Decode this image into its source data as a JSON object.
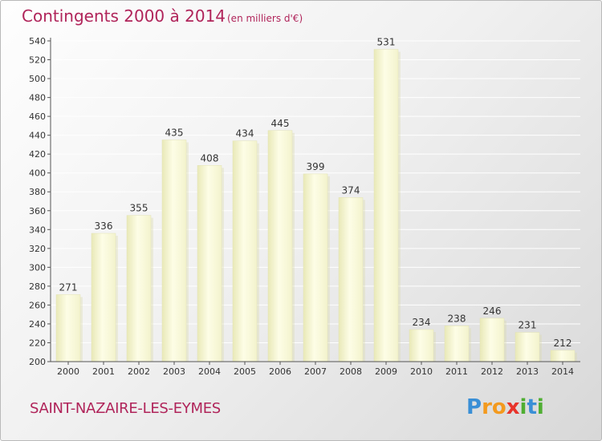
{
  "chart_data": {
    "type": "bar",
    "title": "Contingents 2000 à 2014",
    "subtitle": "(en milliers d'€)",
    "categories": [
      "2000",
      "2001",
      "2002",
      "2003",
      "2004",
      "2005",
      "2006",
      "2007",
      "2008",
      "2009",
      "2010",
      "2011",
      "2012",
      "2013",
      "2014"
    ],
    "values": [
      271,
      336,
      355,
      435,
      408,
      434,
      445,
      399,
      374,
      531,
      234,
      238,
      246,
      231,
      212
    ],
    "xlabel": "",
    "ylabel": "",
    "ylim": [
      200,
      540
    ],
    "yticks": [
      200,
      220,
      240,
      260,
      280,
      300,
      320,
      340,
      360,
      380,
      400,
      420,
      440,
      460,
      480,
      500,
      520,
      540
    ],
    "grid": true,
    "legend": "none",
    "bar_color": "#f2f2c8",
    "bar_shadow_color": "#d9d9a8",
    "place_label": "SAINT-NAZAIRE-LES-EYMES"
  },
  "brand": {
    "letters": [
      "P",
      "r",
      "o",
      "x",
      "i",
      "t",
      "i"
    ],
    "colors": [
      "#3a8fd6",
      "#f39a1e",
      "#f39a1e",
      "#e8342b",
      "#4fae32",
      "#3a8fd6",
      "#4fae32"
    ]
  },
  "colors": {
    "accent": "#b0245a",
    "axis": "#555555",
    "grid": "#ffffff"
  }
}
